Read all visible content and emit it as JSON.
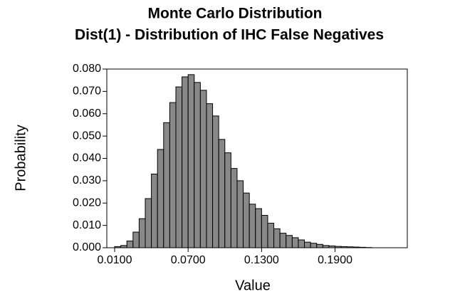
{
  "chart_data": {
    "type": "histogram",
    "title": "Monte Carlo Distribution",
    "subtitle": "Dist(1) - Distribution of IHC False Negatives",
    "x_label": "Value",
    "y_label": "Probability",
    "color": "#888888",
    "bins": [
      0.01,
      0.015,
      0.02,
      0.025,
      0.03,
      0.035,
      0.04,
      0.045,
      0.05,
      0.055,
      0.06,
      0.065,
      0.07,
      0.075,
      0.08,
      0.085,
      0.09,
      0.095,
      0.1,
      0.105,
      0.11,
      0.115,
      0.12,
      0.125,
      0.13,
      0.135,
      0.14,
      0.145,
      0.15,
      0.155,
      0.16,
      0.165,
      0.17,
      0.175,
      0.18,
      0.185,
      0.19,
      0.195,
      0.2,
      0.205,
      0.21,
      0.215,
      0.22
    ],
    "counts": [
      0.0005,
      0.001,
      0.003,
      0.007,
      0.013,
      0.022,
      0.033,
      0.044,
      0.056,
      0.065,
      0.072,
      0.0765,
      0.0775,
      0.074,
      0.0705,
      0.0645,
      0.059,
      0.0485,
      0.0425,
      0.0355,
      0.03,
      0.0245,
      0.0195,
      0.0175,
      0.0145,
      0.011,
      0.0085,
      0.0065,
      0.0055,
      0.0045,
      0.0035,
      0.0025,
      0.002,
      0.0015,
      0.001,
      0.0008,
      0.0006,
      0.0005,
      0.0004,
      0.0003,
      0.0002,
      0.0001
    ],
    "xlim": [
      0.0036,
      0.249
    ],
    "ylim": [
      0,
      0.08
    ],
    "xticks": [
      {
        "value": 0.01,
        "label": "0.0100"
      },
      {
        "value": 0.07,
        "label": "0.0700"
      },
      {
        "value": 0.13,
        "label": "0.1300"
      },
      {
        "value": 0.19,
        "label": "0.1900"
      }
    ],
    "yticks": [
      {
        "value": 0,
        "label": "0.000"
      },
      {
        "value": 0.01,
        "label": "0.010"
      },
      {
        "value": 0.02,
        "label": "0.020"
      },
      {
        "value": 0.03,
        "label": "0.030"
      },
      {
        "value": 0.04,
        "label": "0.040"
      },
      {
        "value": 0.05,
        "label": "0.050"
      },
      {
        "value": 0.06,
        "label": "0.060"
      },
      {
        "value": 0.07,
        "label": "0.070"
      },
      {
        "value": 0.08,
        "label": "0.080"
      }
    ],
    "grid": false
  }
}
